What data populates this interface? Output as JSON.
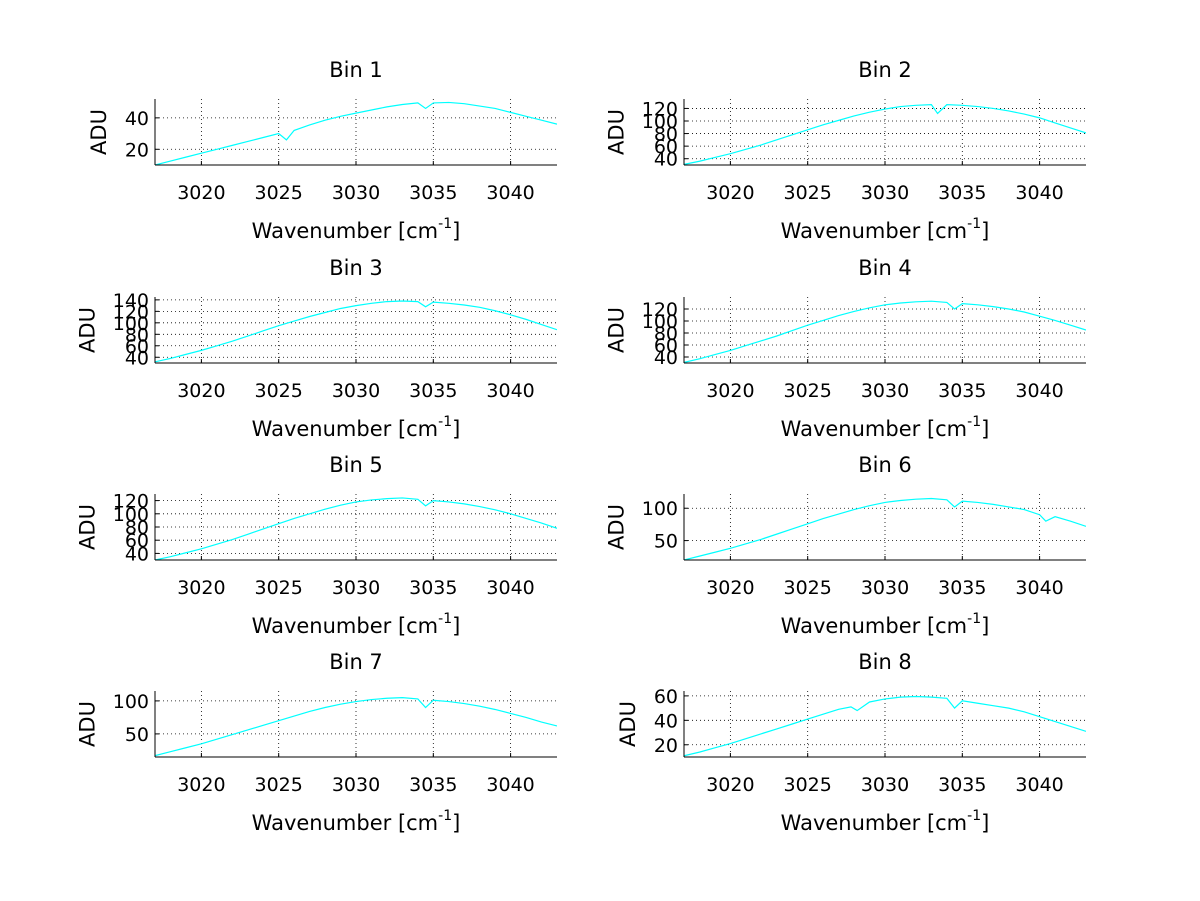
{
  "figure": {
    "background": "#ffffff",
    "line_color": "#00ffff",
    "axis_color": "#000000"
  },
  "chart_data": [
    {
      "type": "line",
      "title": "Bin 1",
      "xlabel": "Wavenumber [cm",
      "xlabel_sup": "-1",
      "xlabel_suffix": "]",
      "ylabel": "ADU",
      "xlim": [
        3017,
        3043
      ],
      "ylim": [
        10,
        52
      ],
      "xticks": [
        3020,
        3025,
        3030,
        3035,
        3040
      ],
      "yticks": [
        20,
        40
      ],
      "grid": true,
      "x": [
        3017,
        3018,
        3019,
        3020,
        3021,
        3022,
        3023,
        3024,
        3025,
        3025.5,
        3026,
        3027,
        3028,
        3029,
        3030,
        3031,
        3032,
        3033,
        3034,
        3034.5,
        3035,
        3036,
        3037,
        3038,
        3039,
        3040,
        3041,
        3042,
        3043
      ],
      "series": [
        {
          "values": [
            10,
            12.5,
            15,
            17.5,
            20,
            22.5,
            25,
            27.5,
            30,
            26,
            32,
            35.5,
            38.5,
            41,
            43,
            45,
            47,
            48.5,
            49.5,
            46,
            49.5,
            49.8,
            49,
            47.5,
            46,
            43.5,
            41,
            38.5,
            36
          ]
        }
      ]
    },
    {
      "type": "line",
      "title": "Bin 2",
      "xlabel": "Wavenumber [cm",
      "xlabel_sup": "-1",
      "xlabel_suffix": "]",
      "ylabel": "ADU",
      "xlim": [
        3017,
        3043
      ],
      "ylim": [
        30,
        135
      ],
      "xticks": [
        3020,
        3025,
        3030,
        3035,
        3040
      ],
      "yticks": [
        40,
        60,
        80,
        100,
        120
      ],
      "grid": true,
      "x": [
        3017,
        3018,
        3019,
        3020,
        3021,
        3022,
        3023,
        3024,
        3025,
        3026,
        3027,
        3028,
        3029,
        3030,
        3031,
        3032,
        3033,
        3033.4,
        3034,
        3035,
        3036,
        3037,
        3038,
        3039,
        3040,
        3041,
        3042,
        3043
      ],
      "series": [
        {
          "values": [
            31,
            36,
            42,
            48,
            55,
            62,
            70,
            78,
            86,
            94,
            101,
            108,
            114,
            119,
            123,
            125,
            126,
            112,
            126,
            125,
            123,
            120,
            116,
            111,
            105,
            97,
            89,
            81
          ]
        }
      ]
    },
    {
      "type": "line",
      "title": "Bin 3",
      "xlabel": "Wavenumber [cm",
      "xlabel_sup": "-1",
      "xlabel_suffix": "]",
      "ylabel": "ADU",
      "xlim": [
        3017,
        3043
      ],
      "ylim": [
        30,
        145
      ],
      "xticks": [
        3020,
        3025,
        3030,
        3035,
        3040
      ],
      "yticks": [
        40,
        60,
        80,
        100,
        120,
        140
      ],
      "grid": true,
      "x": [
        3017,
        3018,
        3019,
        3020,
        3021,
        3022,
        3023,
        3024,
        3025,
        3026,
        3027,
        3028,
        3029,
        3030,
        3031,
        3032,
        3033,
        3034,
        3034.5,
        3035,
        3036,
        3037,
        3038,
        3039,
        3040,
        3041,
        3042,
        3043
      ],
      "series": [
        {
          "values": [
            32,
            38,
            45,
            52,
            60,
            68,
            77,
            86,
            95,
            103,
            111,
            118,
            125,
            130,
            134,
            137,
            138,
            137,
            128,
            136,
            134,
            131,
            127,
            121,
            114,
            106,
            97,
            88
          ]
        }
      ]
    },
    {
      "type": "line",
      "title": "Bin 4",
      "xlabel": "Wavenumber [cm",
      "xlabel_sup": "-1",
      "xlabel_suffix": "]",
      "ylabel": "ADU",
      "xlim": [
        3017,
        3043
      ],
      "ylim": [
        30,
        140
      ],
      "xticks": [
        3020,
        3025,
        3030,
        3035,
        3040
      ],
      "yticks": [
        40,
        60,
        80,
        100,
        120
      ],
      "grid": true,
      "x": [
        3017,
        3018,
        3019,
        3020,
        3021,
        3022,
        3023,
        3024,
        3025,
        3026,
        3027,
        3028,
        3029,
        3030,
        3031,
        3032,
        3033,
        3034,
        3034.5,
        3035,
        3036,
        3037,
        3038,
        3039,
        3040,
        3041,
        3042,
        3043
      ],
      "series": [
        {
          "values": [
            31,
            37,
            44,
            51,
            59,
            67,
            75,
            84,
            93,
            101,
            109,
            116,
            122,
            127,
            130,
            132,
            133,
            131,
            120,
            129,
            127,
            124,
            120,
            115,
            108,
            101,
            93,
            85
          ]
        }
      ]
    },
    {
      "type": "line",
      "title": "Bin 5",
      "xlabel": "Wavenumber [cm",
      "xlabel_sup": "-1",
      "xlabel_suffix": "]",
      "ylabel": "ADU",
      "xlim": [
        3017,
        3043
      ],
      "ylim": [
        30,
        130
      ],
      "xticks": [
        3020,
        3025,
        3030,
        3035,
        3040
      ],
      "yticks": [
        40,
        60,
        80,
        100,
        120
      ],
      "grid": true,
      "x": [
        3017,
        3018,
        3019,
        3020,
        3021,
        3022,
        3023,
        3024,
        3025,
        3026,
        3027,
        3028,
        3029,
        3030,
        3031,
        3032,
        3033,
        3034,
        3034.5,
        3035,
        3036,
        3037,
        3038,
        3039,
        3040,
        3041,
        3042,
        3043
      ],
      "series": [
        {
          "values": [
            30,
            35,
            41,
            47,
            54,
            61,
            69,
            77,
            85,
            93,
            100,
            107,
            113,
            118,
            121,
            123,
            124,
            122,
            112,
            120,
            118,
            115,
            111,
            106,
            100,
            93,
            86,
            78
          ]
        }
      ]
    },
    {
      "type": "line",
      "title": "Bin 6",
      "xlabel": "Wavenumber [cm",
      "xlabel_sup": "-1",
      "xlabel_suffix": "]",
      "ylabel": "ADU",
      "xlim": [
        3017,
        3043
      ],
      "ylim": [
        20,
        122
      ],
      "xticks": [
        3020,
        3025,
        3030,
        3035,
        3040
      ],
      "yticks": [
        50,
        100
      ],
      "grid": true,
      "x": [
        3017,
        3018,
        3019,
        3020,
        3021,
        3022,
        3023,
        3024,
        3025,
        3026,
        3027,
        3028,
        3029,
        3030,
        3031,
        3032,
        3033,
        3034,
        3034.5,
        3035,
        3036,
        3037,
        3038,
        3039,
        3040,
        3040.4,
        3041,
        3042,
        3043
      ],
      "series": [
        {
          "values": [
            20,
            26,
            32,
            38,
            45,
            52,
            60,
            68,
            76,
            84,
            91,
            98,
            104,
            109,
            112,
            114,
            115,
            113,
            102,
            111,
            109,
            106,
            102,
            98,
            90,
            80,
            87,
            80,
            72
          ]
        }
      ]
    },
    {
      "type": "line",
      "title": "Bin 7",
      "xlabel": "Wavenumber [cm",
      "xlabel_sup": "-1",
      "xlabel_suffix": "]",
      "ylabel": "ADU",
      "xlim": [
        3017,
        3043
      ],
      "ylim": [
        15,
        115
      ],
      "xticks": [
        3020,
        3025,
        3030,
        3035,
        3040
      ],
      "yticks": [
        50,
        100
      ],
      "grid": true,
      "x": [
        3017,
        3018,
        3019,
        3020,
        3021,
        3022,
        3023,
        3024,
        3025,
        3026,
        3027,
        3028,
        3029,
        3030,
        3031,
        3032,
        3033,
        3034,
        3034.5,
        3035,
        3036,
        3037,
        3038,
        3039,
        3040,
        3041,
        3042,
        3043
      ],
      "series": [
        {
          "values": [
            17,
            23,
            29,
            35,
            42,
            49,
            56,
            63,
            70,
            77,
            84,
            90,
            95,
            99,
            102,
            104,
            105,
            103,
            90,
            101,
            99,
            96,
            92,
            87,
            81,
            75,
            68,
            62
          ]
        }
      ]
    },
    {
      "type": "line",
      "title": "Bin 8",
      "xlabel": "Wavenumber [cm",
      "xlabel_sup": "-1",
      "xlabel_suffix": "]",
      "ylabel": "ADU",
      "xlim": [
        3017,
        3043
      ],
      "ylim": [
        10,
        64
      ],
      "xticks": [
        3020,
        3025,
        3030,
        3035,
        3040
      ],
      "yticks": [
        20,
        40,
        60
      ],
      "grid": true,
      "x": [
        3017,
        3018,
        3019,
        3020,
        3021,
        3022,
        3023,
        3024,
        3025,
        3026,
        3027,
        3027.8,
        3028.2,
        3029,
        3030,
        3031,
        3032,
        3033,
        3034,
        3034.5,
        3035,
        3036,
        3037,
        3038,
        3039,
        3040,
        3041,
        3042,
        3043
      ],
      "series": [
        {
          "values": [
            11,
            14,
            17.5,
            21,
            25,
            29,
            33,
            37,
            41,
            45,
            49,
            51,
            48,
            55,
            57.5,
            59,
            59.5,
            59,
            58,
            50,
            56,
            54,
            52,
            50,
            47,
            43,
            39,
            35,
            31
          ]
        }
      ]
    }
  ]
}
